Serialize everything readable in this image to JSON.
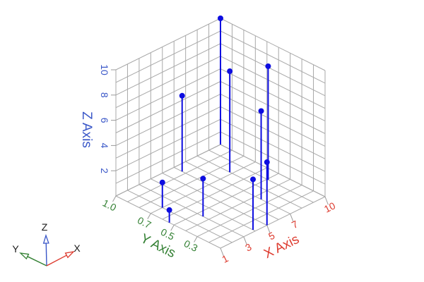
{
  "chart_data": {
    "type": "scatter",
    "subtype": "3d-stem-plot",
    "title": "",
    "xlabel": "X Axis",
    "ylabel": "Y Axis",
    "zlabel": "Z Axis",
    "x": [
      1,
      2,
      3,
      4,
      5,
      6,
      7,
      8,
      9,
      10
    ],
    "y": [
      0.54,
      0.7,
      0.45,
      0.12,
      0.1,
      0.93,
      0.35,
      0.72,
      0.49,
      1.0
    ],
    "z": [
      1,
      2,
      3,
      4,
      5,
      6,
      7,
      8,
      9,
      10
    ],
    "xlim": [
      1,
      10
    ],
    "ylim": [
      0.1,
      1.0
    ],
    "zlim": [
      0,
      10
    ],
    "xticks": {
      "values": [
        1,
        3,
        5,
        7,
        10
      ],
      "labels": [
        "1",
        "3",
        "5",
        "7",
        "10"
      ]
    },
    "yticks": {
      "values": [
        0.3,
        0.5,
        0.7,
        1.0
      ],
      "labels": [
        "0.3",
        "0.5",
        "0.7",
        "1.0"
      ]
    },
    "zticks": {
      "values": [
        2,
        4,
        6,
        8,
        10
      ],
      "labels": [
        "2",
        "4",
        "6",
        "8",
        "10"
      ]
    },
    "grid": true,
    "grid_steps": {
      "x": 1,
      "y": 0.1,
      "z": 1
    },
    "legend": "none",
    "marker": "filled-circle",
    "colors": {
      "stem": "#0d0de0",
      "marker": "#0d0de0",
      "x_axis": "#dd3a2e",
      "y_axis": "#338033",
      "z_axis": "#3a57c8",
      "grid": "#a8a8a8",
      "tick": "#999999",
      "triad_label": "#1a1a1a",
      "background": "#ffffff"
    }
  },
  "triad": {
    "x_label": "X",
    "y_label": "Y",
    "z_label": "Z"
  }
}
